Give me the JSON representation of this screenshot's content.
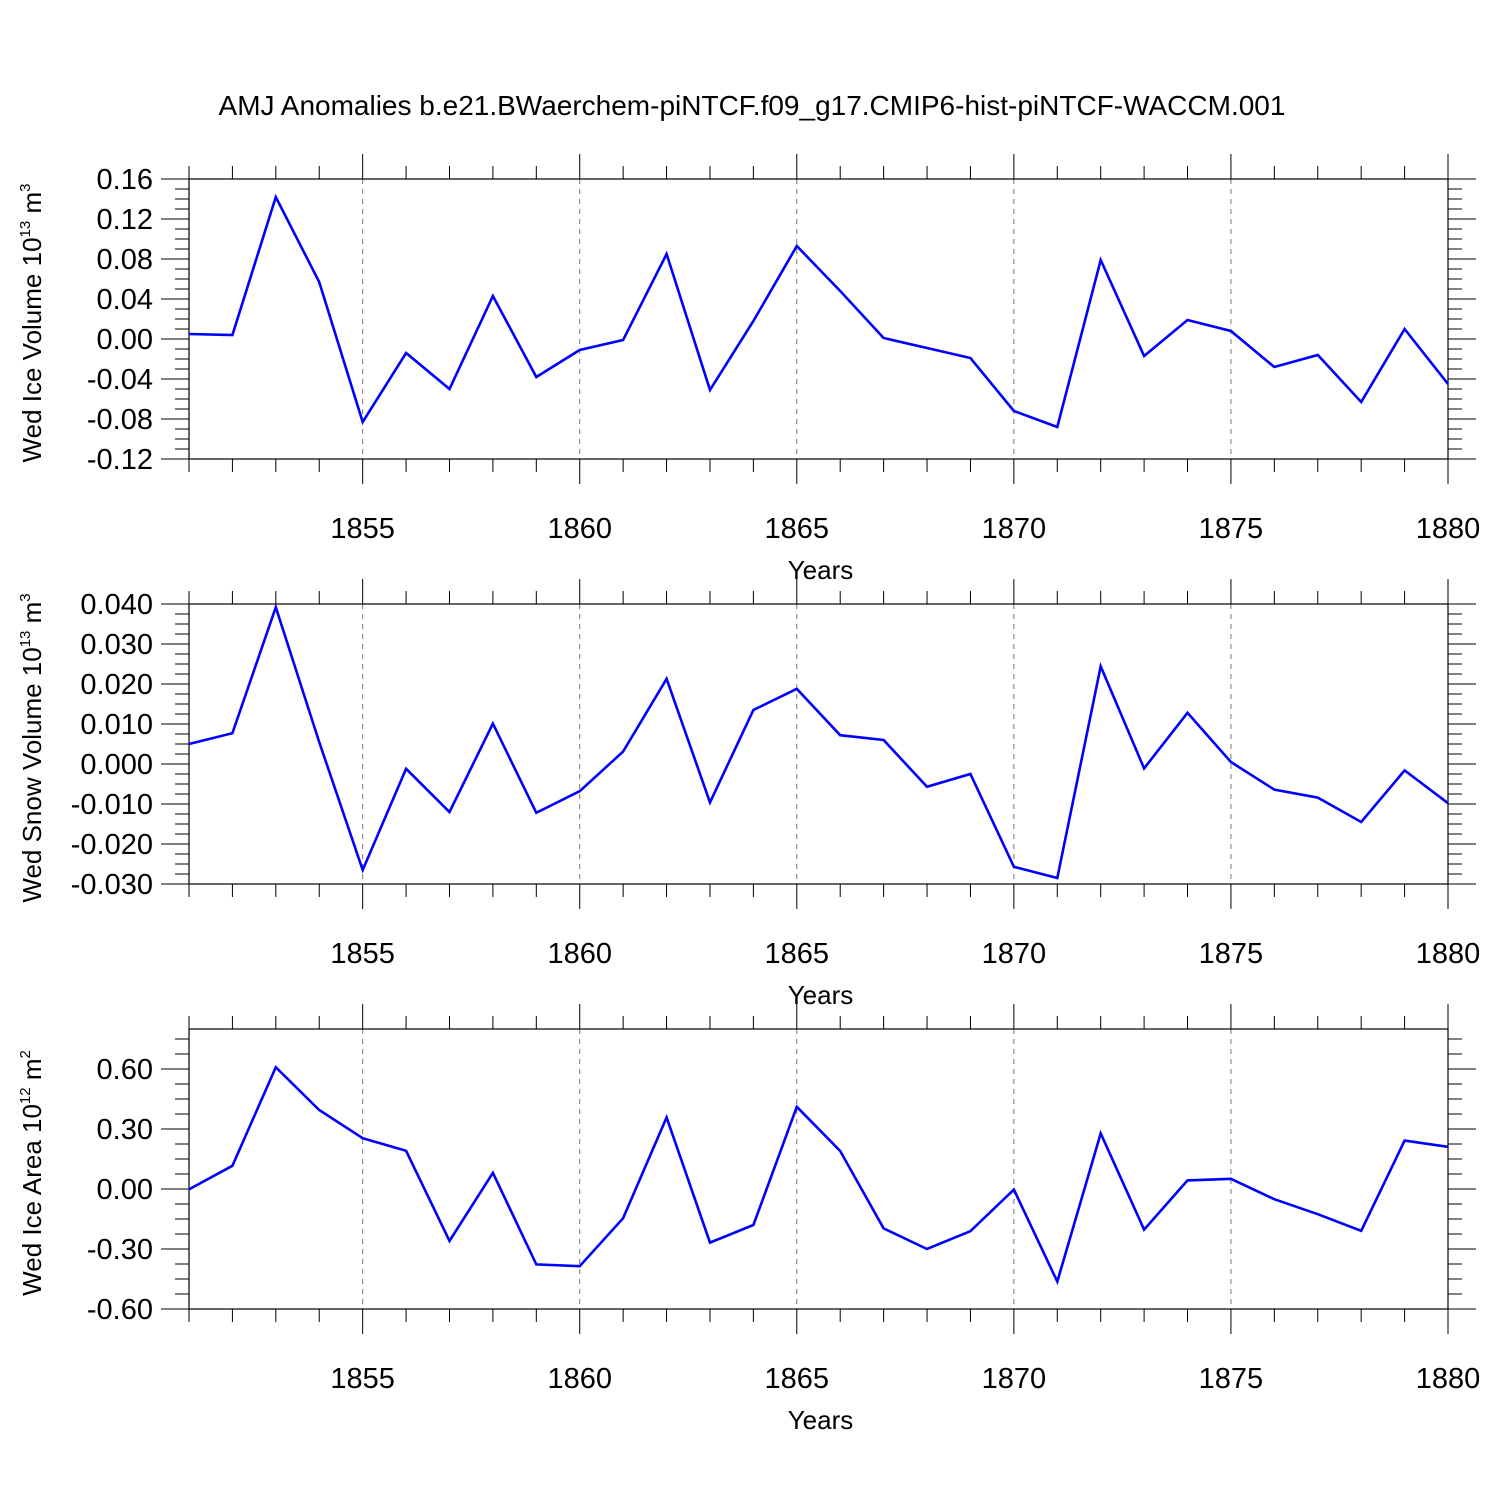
{
  "title": "AMJ Anomalies b.e21.BWaerchem-piNTCF.f09_g17.CMIP6-hist-piNTCF-WACCM.001",
  "colors": {
    "line": "#0000ff",
    "axis": "#000000",
    "grid": "#777777"
  },
  "chart_data": [
    {
      "type": "line",
      "ylabel": {
        "text": "Wed Ice Volume 10",
        "exponent": "13",
        "unit": " m",
        "unit_exponent": "3"
      },
      "xlabel": "Years",
      "xlim": [
        1851,
        1880
      ],
      "ylim": [
        -0.12,
        0.16
      ],
      "yticks": [
        "0.16",
        "0.12",
        "0.08",
        "0.04",
        "0.00",
        "-0.04",
        "-0.08",
        "-0.12"
      ],
      "ytick_values": [
        0.16,
        0.12,
        0.08,
        0.04,
        0.0,
        -0.04,
        -0.08,
        -0.12
      ],
      "xticks": [
        "1855",
        "1860",
        "1865",
        "1870",
        "1875",
        "1880"
      ],
      "xtick_values": [
        1855,
        1860,
        1865,
        1870,
        1875,
        1880
      ],
      "x": [
        1851,
        1852,
        1853,
        1854,
        1855,
        1856,
        1857,
        1858,
        1859,
        1860,
        1861,
        1862,
        1863,
        1864,
        1865,
        1866,
        1867,
        1868,
        1869,
        1870,
        1871,
        1872,
        1873,
        1874,
        1875,
        1876,
        1877,
        1878,
        1879,
        1880
      ],
      "values": [
        0.005,
        0.004,
        0.142,
        0.057,
        -0.083,
        -0.014,
        -0.05,
        0.043,
        -0.038,
        -0.011,
        -0.001,
        0.085,
        -0.051,
        0.018,
        0.093,
        0.048,
        0.001,
        -0.009,
        -0.019,
        -0.072,
        -0.088,
        0.079,
        -0.017,
        0.019,
        0.008,
        -0.028,
        -0.016,
        -0.063,
        0.01,
        -0.045
      ],
      "grid": "vertical dashed at major x ticks"
    },
    {
      "type": "line",
      "ylabel": {
        "text": "Wed Snow Volume 10",
        "exponent": "13",
        "unit": " m",
        "unit_exponent": "3"
      },
      "xlabel": "Years",
      "xlim": [
        1851,
        1880
      ],
      "ylim": [
        -0.03,
        0.04
      ],
      "yticks": [
        "0.040",
        "0.030",
        "0.020",
        "0.010",
        "0.000",
        "-0.010",
        "-0.020",
        "-0.030"
      ],
      "ytick_values": [
        0.04,
        0.03,
        0.02,
        0.01,
        0.0,
        -0.01,
        -0.02,
        -0.03
      ],
      "xticks": [
        "1855",
        "1860",
        "1865",
        "1870",
        "1875",
        "1880"
      ],
      "xtick_values": [
        1855,
        1860,
        1865,
        1870,
        1875,
        1880
      ],
      "x": [
        1851,
        1852,
        1853,
        1854,
        1855,
        1856,
        1857,
        1858,
        1859,
        1860,
        1861,
        1862,
        1863,
        1864,
        1865,
        1866,
        1867,
        1868,
        1869,
        1870,
        1871,
        1872,
        1873,
        1874,
        1875,
        1876,
        1877,
        1878,
        1879,
        1880
      ],
      "values": [
        0.005,
        0.0077,
        0.0392,
        0.0055,
        -0.0265,
        -0.0012,
        -0.012,
        0.0101,
        -0.0122,
        -0.0068,
        0.0031,
        0.0213,
        -0.0096,
        0.0135,
        0.0188,
        0.0072,
        0.006,
        -0.0057,
        -0.0025,
        -0.0257,
        -0.0285,
        0.0244,
        -0.0011,
        0.0128,
        0.0005,
        -0.0064,
        -0.0084,
        -0.0145,
        -0.0016,
        -0.0098
      ],
      "grid": "vertical dashed at major x ticks"
    },
    {
      "type": "line",
      "ylabel": {
        "text": "Wed Ice Area 10",
        "exponent": "12",
        "unit": " m",
        "unit_exponent": "2"
      },
      "xlabel": "Years",
      "xlim": [
        1851,
        1880
      ],
      "ylim": [
        -0.6,
        0.8
      ],
      "yticks": [
        "0.60",
        "0.30",
        "0.00",
        "-0.30",
        "-0.60"
      ],
      "ytick_values": [
        0.6,
        0.3,
        0.0,
        -0.3,
        -0.6
      ],
      "xticks": [
        "1855",
        "1860",
        "1865",
        "1870",
        "1875",
        "1880"
      ],
      "xtick_values": [
        1855,
        1860,
        1865,
        1870,
        1875,
        1880
      ],
      "x": [
        1851,
        1852,
        1853,
        1854,
        1855,
        1856,
        1857,
        1858,
        1859,
        1860,
        1861,
        1862,
        1863,
        1864,
        1865,
        1866,
        1867,
        1868,
        1869,
        1870,
        1871,
        1872,
        1873,
        1874,
        1875,
        1876,
        1877,
        1878,
        1879,
        1880
      ],
      "values": [
        -0.002,
        0.116,
        0.609,
        0.395,
        0.254,
        0.191,
        -0.26,
        0.081,
        -0.377,
        -0.386,
        -0.146,
        0.358,
        -0.268,
        -0.18,
        0.411,
        0.19,
        -0.197,
        -0.3,
        -0.211,
        -0.003,
        -0.463,
        0.278,
        -0.203,
        0.043,
        0.051,
        -0.051,
        -0.126,
        -0.209,
        0.242,
        0.211
      ],
      "grid": "vertical dashed at major x ticks"
    }
  ]
}
